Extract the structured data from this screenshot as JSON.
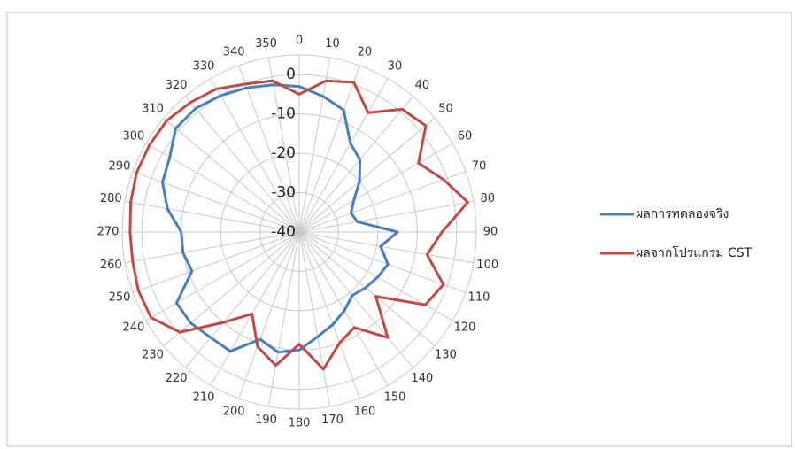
{
  "chart_data": {
    "type": "radar",
    "categories": [
      0,
      10,
      20,
      30,
      40,
      50,
      60,
      70,
      80,
      90,
      100,
      110,
      120,
      130,
      140,
      150,
      160,
      170,
      180,
      190,
      200,
      210,
      220,
      230,
      240,
      250,
      260,
      270,
      280,
      290,
      300,
      310,
      320,
      330,
      340,
      350
    ],
    "rlim": [
      -40,
      5
    ],
    "rticks": [
      -40,
      -30,
      -20,
      -10,
      0
    ],
    "grid": true,
    "legend": "right",
    "series": [
      {
        "name": "ผลการทดลองจริง",
        "color": "#4a7ebb",
        "values": [
          -3,
          -5,
          -7,
          -14,
          -16,
          -20,
          -24,
          -26,
          -25,
          -15,
          -19,
          -16,
          -17,
          -18,
          -19,
          -17,
          -15,
          -13,
          -10,
          -9,
          -11,
          -5,
          -5,
          -4,
          -4,
          -11,
          -10,
          -10,
          -6,
          -3,
          -2,
          1,
          1,
          0,
          -1,
          -2
        ]
      },
      {
        "name": "ผลจากโปรแกรม CST",
        "color": "#be4b48",
        "values": [
          -5,
          -1,
          0.5,
          -5,
          0.7,
          2,
          -5,
          -1,
          3.5,
          -3.7,
          -7,
          -1,
          -3,
          -14.6,
          -5,
          -12,
          -10,
          -4.6,
          -11.5,
          -5.6,
          -9,
          -16,
          -10,
          -0.4,
          3.5,
          3.5,
          3,
          3,
          3.5,
          4,
          4,
          4,
          3,
          2,
          0,
          -1
        ]
      }
    ]
  }
}
